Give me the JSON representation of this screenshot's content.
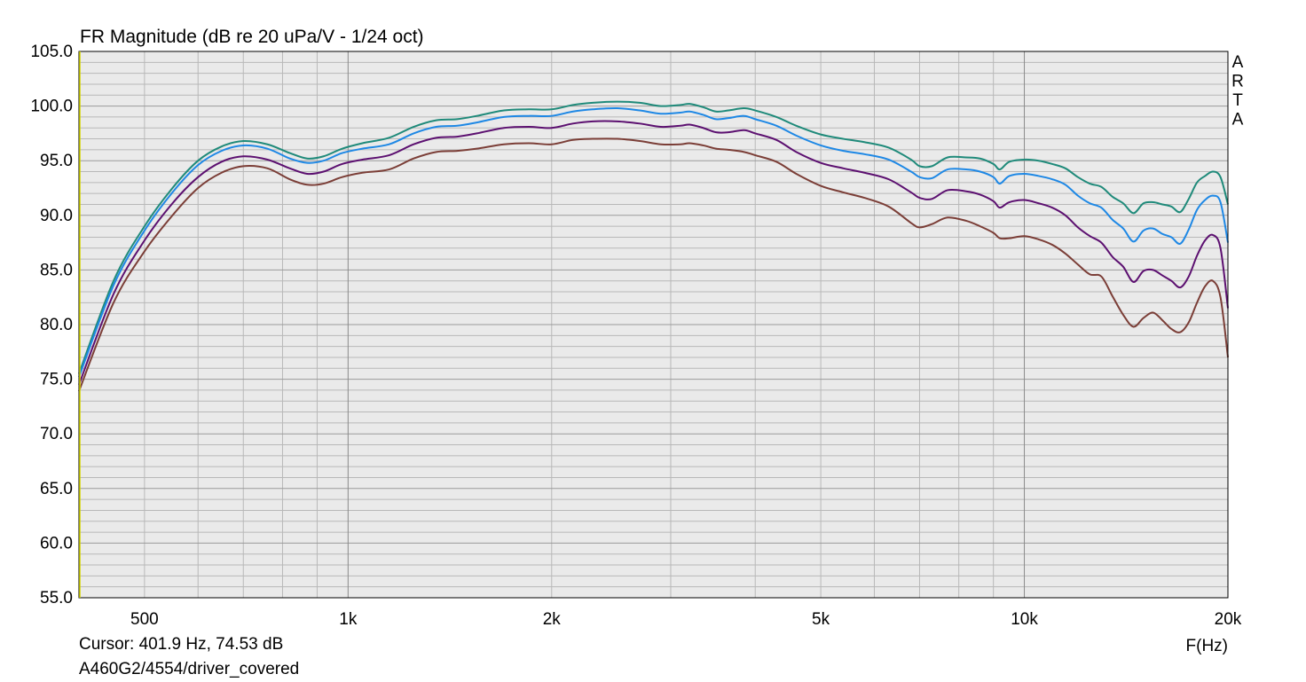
{
  "chart_data": {
    "type": "line",
    "title": "FR Magnitude (dB re 20 uPa/V - 1/24 oct)",
    "xlabel": "F(Hz)",
    "x_scale": "log",
    "xlim": [
      400,
      20000
    ],
    "ylim": [
      55,
      105
    ],
    "y_ticks": [
      "55.0",
      "60.0",
      "65.0",
      "70.0",
      "75.0",
      "80.0",
      "85.0",
      "90.0",
      "95.0",
      "100.0",
      "105.0"
    ],
    "x_ticks": [
      {
        "value": 500,
        "label": "500"
      },
      {
        "value": 1000,
        "label": "1k"
      },
      {
        "value": 2000,
        "label": "2k"
      },
      {
        "value": 5000,
        "label": "5k"
      },
      {
        "value": 10000,
        "label": "10k"
      },
      {
        "value": 20000,
        "label": "20k"
      }
    ],
    "grid": true,
    "watermark": [
      "A",
      "R",
      "T",
      "A"
    ],
    "series": [
      {
        "color": "#1f8a7a",
        "points": [
          [
            400,
            75.5
          ],
          [
            450,
            84
          ],
          [
            500,
            89
          ],
          [
            550,
            92.5
          ],
          [
            600,
            95
          ],
          [
            650,
            96.3
          ],
          [
            700,
            96.8
          ],
          [
            760,
            96.5
          ],
          [
            820,
            95.7
          ],
          [
            870,
            95.2
          ],
          [
            920,
            95.4
          ],
          [
            980,
            96.1
          ],
          [
            1050,
            96.6
          ],
          [
            1150,
            97.1
          ],
          [
            1250,
            98.1
          ],
          [
            1350,
            98.7
          ],
          [
            1450,
            98.8
          ],
          [
            1550,
            99.1
          ],
          [
            1700,
            99.6
          ],
          [
            1850,
            99.7
          ],
          [
            2000,
            99.7
          ],
          [
            2150,
            100.1
          ],
          [
            2300,
            100.3
          ],
          [
            2500,
            100.4
          ],
          [
            2700,
            100.3
          ],
          [
            2900,
            100
          ],
          [
            3100,
            100.1
          ],
          [
            3200,
            100.2
          ],
          [
            3350,
            99.9
          ],
          [
            3500,
            99.5
          ],
          [
            3650,
            99.6
          ],
          [
            3850,
            99.8
          ],
          [
            4000,
            99.6
          ],
          [
            4300,
            99
          ],
          [
            4600,
            98.2
          ],
          [
            5000,
            97.4
          ],
          [
            5400,
            97
          ],
          [
            5800,
            96.7
          ],
          [
            6300,
            96.2
          ],
          [
            6800,
            95.1
          ],
          [
            7000,
            94.5
          ],
          [
            7300,
            94.5
          ],
          [
            7700,
            95.3
          ],
          [
            8200,
            95.3
          ],
          [
            8600,
            95.2
          ],
          [
            9000,
            94.7
          ],
          [
            9200,
            94.2
          ],
          [
            9500,
            94.9
          ],
          [
            10000,
            95.1
          ],
          [
            10500,
            95
          ],
          [
            11000,
            94.7
          ],
          [
            11500,
            94.3
          ],
          [
            12000,
            93.5
          ],
          [
            12500,
            92.9
          ],
          [
            13000,
            92.6
          ],
          [
            13500,
            91.7
          ],
          [
            14000,
            91.1
          ],
          [
            14500,
            90.2
          ],
          [
            15000,
            91.1
          ],
          [
            15500,
            91.2
          ],
          [
            16000,
            91
          ],
          [
            16500,
            90.8
          ],
          [
            17000,
            90.3
          ],
          [
            17500,
            91.5
          ],
          [
            18000,
            93
          ],
          [
            18500,
            93.6
          ],
          [
            19000,
            94
          ],
          [
            19500,
            93.5
          ],
          [
            20000,
            91
          ]
        ]
      },
      {
        "color": "#1e88e5",
        "points": [
          [
            400,
            75.2
          ],
          [
            450,
            83.6
          ],
          [
            500,
            88.6
          ],
          [
            550,
            92.1
          ],
          [
            600,
            94.6
          ],
          [
            650,
            95.9
          ],
          [
            700,
            96.4
          ],
          [
            760,
            96.1
          ],
          [
            820,
            95.2
          ],
          [
            870,
            94.8
          ],
          [
            920,
            95
          ],
          [
            980,
            95.7
          ],
          [
            1050,
            96.1
          ],
          [
            1150,
            96.5
          ],
          [
            1250,
            97.5
          ],
          [
            1350,
            98.1
          ],
          [
            1450,
            98.2
          ],
          [
            1550,
            98.5
          ],
          [
            1700,
            99
          ],
          [
            1850,
            99.1
          ],
          [
            2000,
            99.1
          ],
          [
            2150,
            99.5
          ],
          [
            2300,
            99.7
          ],
          [
            2500,
            99.8
          ],
          [
            2700,
            99.6
          ],
          [
            2900,
            99.3
          ],
          [
            3100,
            99.4
          ],
          [
            3200,
            99.5
          ],
          [
            3350,
            99.2
          ],
          [
            3500,
            98.8
          ],
          [
            3650,
            98.9
          ],
          [
            3850,
            99.1
          ],
          [
            4000,
            98.8
          ],
          [
            4300,
            98.2
          ],
          [
            4600,
            97.3
          ],
          [
            5000,
            96.4
          ],
          [
            5400,
            95.9
          ],
          [
            5800,
            95.6
          ],
          [
            6300,
            95.1
          ],
          [
            6800,
            94
          ],
          [
            7000,
            93.5
          ],
          [
            7300,
            93.4
          ],
          [
            7700,
            94.2
          ],
          [
            8200,
            94.2
          ],
          [
            8600,
            94
          ],
          [
            9000,
            93.5
          ],
          [
            9200,
            92.9
          ],
          [
            9500,
            93.6
          ],
          [
            10000,
            93.8
          ],
          [
            10500,
            93.6
          ],
          [
            11000,
            93.3
          ],
          [
            11500,
            92.8
          ],
          [
            12000,
            91.8
          ],
          [
            12500,
            91.1
          ],
          [
            13000,
            90.7
          ],
          [
            13500,
            89.6
          ],
          [
            14000,
            88.8
          ],
          [
            14500,
            87.6
          ],
          [
            15000,
            88.6
          ],
          [
            15500,
            88.8
          ],
          [
            16000,
            88.3
          ],
          [
            16500,
            88
          ],
          [
            17000,
            87.4
          ],
          [
            17500,
            88.7
          ],
          [
            18000,
            90.5
          ],
          [
            18500,
            91.4
          ],
          [
            19000,
            91.8
          ],
          [
            19500,
            91.2
          ],
          [
            20000,
            87.5
          ]
        ]
      },
      {
        "color": "#5c1070",
        "points": [
          [
            400,
            74.5
          ],
          [
            450,
            82.8
          ],
          [
            500,
            87.7
          ],
          [
            550,
            91.1
          ],
          [
            600,
            93.5
          ],
          [
            650,
            94.9
          ],
          [
            700,
            95.4
          ],
          [
            760,
            95.1
          ],
          [
            820,
            94.3
          ],
          [
            870,
            93.8
          ],
          [
            920,
            94
          ],
          [
            980,
            94.7
          ],
          [
            1050,
            95.1
          ],
          [
            1150,
            95.5
          ],
          [
            1250,
            96.5
          ],
          [
            1350,
            97.1
          ],
          [
            1450,
            97.2
          ],
          [
            1550,
            97.5
          ],
          [
            1700,
            98
          ],
          [
            1850,
            98.1
          ],
          [
            2000,
            98
          ],
          [
            2150,
            98.4
          ],
          [
            2300,
            98.6
          ],
          [
            2500,
            98.6
          ],
          [
            2700,
            98.4
          ],
          [
            2900,
            98.1
          ],
          [
            3100,
            98.2
          ],
          [
            3200,
            98.3
          ],
          [
            3350,
            98
          ],
          [
            3500,
            97.6
          ],
          [
            3650,
            97.6
          ],
          [
            3850,
            97.8
          ],
          [
            4000,
            97.5
          ],
          [
            4300,
            96.9
          ],
          [
            4600,
            95.8
          ],
          [
            5000,
            94.8
          ],
          [
            5400,
            94.3
          ],
          [
            5800,
            93.9
          ],
          [
            6300,
            93.3
          ],
          [
            6800,
            92.1
          ],
          [
            7000,
            91.6
          ],
          [
            7300,
            91.5
          ],
          [
            7700,
            92.3
          ],
          [
            8200,
            92.2
          ],
          [
            8600,
            91.9
          ],
          [
            9000,
            91.3
          ],
          [
            9200,
            90.7
          ],
          [
            9500,
            91.2
          ],
          [
            10000,
            91.4
          ],
          [
            10500,
            91.1
          ],
          [
            11000,
            90.7
          ],
          [
            11500,
            90
          ],
          [
            12000,
            88.9
          ],
          [
            12500,
            88.1
          ],
          [
            13000,
            87.5
          ],
          [
            13500,
            86.2
          ],
          [
            14000,
            85.3
          ],
          [
            14500,
            83.9
          ],
          [
            15000,
            84.9
          ],
          [
            15500,
            85
          ],
          [
            16000,
            84.5
          ],
          [
            16500,
            84
          ],
          [
            17000,
            83.4
          ],
          [
            17500,
            84.4
          ],
          [
            18000,
            86.3
          ],
          [
            18500,
            87.7
          ],
          [
            19000,
            88.2
          ],
          [
            19500,
            87
          ],
          [
            20000,
            81.5
          ]
        ]
      },
      {
        "color": "#7b3e37",
        "points": [
          [
            400,
            73.9
          ],
          [
            450,
            82
          ],
          [
            500,
            86.7
          ],
          [
            550,
            90
          ],
          [
            600,
            92.5
          ],
          [
            650,
            93.9
          ],
          [
            700,
            94.5
          ],
          [
            760,
            94.3
          ],
          [
            820,
            93.3
          ],
          [
            870,
            92.8
          ],
          [
            920,
            92.9
          ],
          [
            980,
            93.5
          ],
          [
            1050,
            93.9
          ],
          [
            1150,
            94.2
          ],
          [
            1250,
            95.2
          ],
          [
            1350,
            95.8
          ],
          [
            1450,
            95.9
          ],
          [
            1550,
            96.1
          ],
          [
            1700,
            96.5
          ],
          [
            1850,
            96.6
          ],
          [
            2000,
            96.5
          ],
          [
            2150,
            96.9
          ],
          [
            2300,
            97
          ],
          [
            2500,
            97
          ],
          [
            2700,
            96.8
          ],
          [
            2900,
            96.5
          ],
          [
            3100,
            96.5
          ],
          [
            3200,
            96.6
          ],
          [
            3350,
            96.4
          ],
          [
            3500,
            96.1
          ],
          [
            3650,
            96
          ],
          [
            3850,
            95.8
          ],
          [
            4000,
            95.5
          ],
          [
            4300,
            94.9
          ],
          [
            4600,
            93.8
          ],
          [
            5000,
            92.7
          ],
          [
            5400,
            92.1
          ],
          [
            5800,
            91.6
          ],
          [
            6300,
            90.8
          ],
          [
            6800,
            89.3
          ],
          [
            7000,
            88.9
          ],
          [
            7300,
            89.2
          ],
          [
            7700,
            89.8
          ],
          [
            8200,
            89.5
          ],
          [
            8600,
            89
          ],
          [
            9000,
            88.4
          ],
          [
            9200,
            87.9
          ],
          [
            9500,
            87.9
          ],
          [
            10000,
            88.1
          ],
          [
            10500,
            87.8
          ],
          [
            11000,
            87.3
          ],
          [
            11500,
            86.5
          ],
          [
            12000,
            85.5
          ],
          [
            12500,
            84.6
          ],
          [
            13000,
            84.4
          ],
          [
            13500,
            82.6
          ],
          [
            14000,
            80.9
          ],
          [
            14500,
            79.8
          ],
          [
            15000,
            80.6
          ],
          [
            15500,
            81.1
          ],
          [
            16000,
            80.4
          ],
          [
            16500,
            79.6
          ],
          [
            17000,
            79.3
          ],
          [
            17500,
            80.2
          ],
          [
            18000,
            82
          ],
          [
            18500,
            83.5
          ],
          [
            19000,
            84
          ],
          [
            19500,
            82.5
          ],
          [
            20000,
            77
          ]
        ]
      }
    ]
  },
  "cursor_text": "Cursor: 401.9 Hz, 74.53 dB",
  "file_text": "A460G2/4554/driver_covered"
}
